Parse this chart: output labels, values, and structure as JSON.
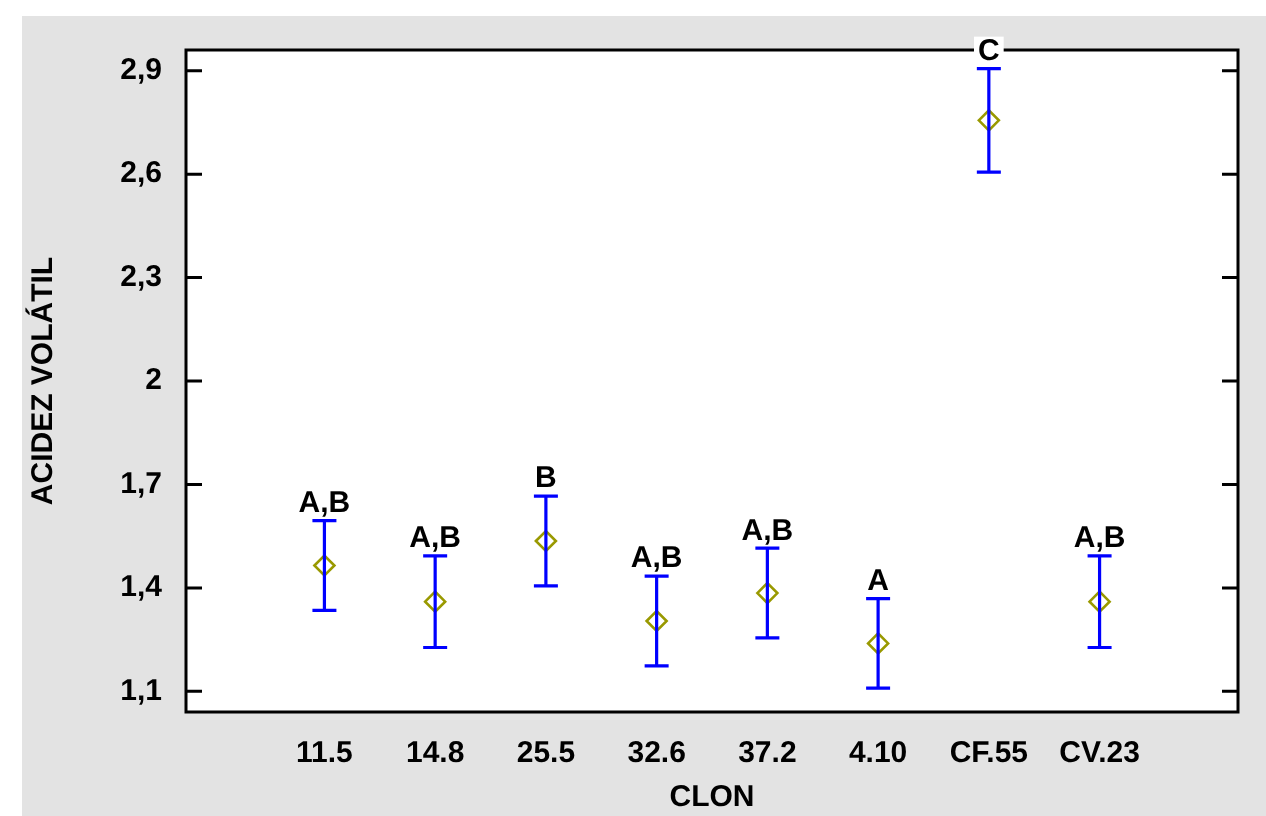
{
  "chart_data": {
    "type": "scatter",
    "xlabel": "CLON",
    "ylabel": "ACIDEZ VOLÁTIL",
    "categories": [
      "11.5",
      "14.8",
      "25.5",
      "32.6",
      "37.2",
      "4.10",
      "CF.55",
      "CV.23"
    ],
    "series": [
      {
        "color": "#999900",
        "values": [
          1.465,
          1.36,
          1.536,
          1.304,
          1.385,
          1.239,
          2.756,
          1.36
        ],
        "errors": [
          0.13,
          0.133,
          0.13,
          0.13,
          0.13,
          0.13,
          0.15,
          0.133
        ]
      }
    ],
    "ylim": [
      1.04,
      2.96
    ],
    "yticks": [
      {
        "value": 1.1,
        "label": "1,1"
      },
      {
        "value": 1.4,
        "label": "1,4"
      },
      {
        "value": 1.7,
        "label": "1,7"
      },
      {
        "value": 2,
        "label": "2"
      },
      {
        "value": 2.3,
        "label": "2,3"
      },
      {
        "value": 2.6,
        "label": "2,6"
      },
      {
        "value": 2.9,
        "label": "2,9"
      }
    ],
    "marker": "diamond",
    "annotations": [
      {
        "text": "A,B",
        "x": "11.5",
        "y": 1.595
      },
      {
        "text": "A,B",
        "x": "14.8",
        "y": 1.493
      },
      {
        "text": "B",
        "x": "25.5",
        "y": 1.666
      },
      {
        "text": "A,B",
        "x": "32.6",
        "y": 1.434
      },
      {
        "text": "A,B",
        "x": "37.2",
        "y": 1.515
      },
      {
        "text": "A",
        "x": "4.10",
        "y": 1.369
      },
      {
        "text": "C",
        "x": "CF.55",
        "y": 2.906
      },
      {
        "text": "A,B",
        "x": "CV.23",
        "y": 1.493
      }
    ]
  }
}
